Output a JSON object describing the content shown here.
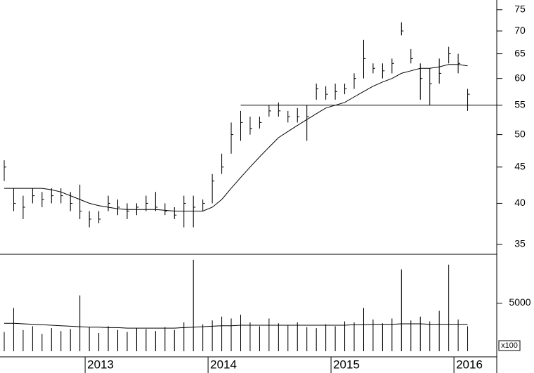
{
  "chart_data": {
    "type": "ohlc",
    "categories": [
      null,
      null,
      null,
      null,
      null,
      null,
      null,
      null,
      null,
      "2013",
      null,
      null,
      null,
      null,
      null,
      null,
      null,
      null,
      null,
      null,
      null,
      null,
      "2014",
      null,
      null,
      null,
      null,
      null,
      null,
      null,
      null,
      null,
      null,
      null,
      null,
      "2015",
      null,
      null,
      null,
      null,
      null,
      null,
      null,
      null,
      null,
      null,
      null,
      null,
      "2016",
      null
    ],
    "log_scale": true,
    "ylim": [
      33.9,
      77.4
    ],
    "yticks": [
      35,
      40,
      45,
      50,
      55,
      60,
      65,
      70,
      75
    ],
    "high": [
      46,
      42,
      41,
      42,
      41.5,
      42,
      42,
      41.5,
      42.5,
      39,
      39,
      41,
      40.5,
      40,
      40,
      41,
      41.5,
      40,
      39.5,
      41,
      41,
      40.5,
      44,
      47,
      52,
      54,
      53,
      53,
      55,
      55.5,
      54,
      54.5,
      55,
      59,
      58.5,
      59,
      59,
      61,
      68,
      63,
      63,
      64,
      72,
      66,
      63,
      62,
      64,
      66.5,
      65,
      58
    ],
    "low": [
      43,
      39,
      38,
      40,
      39.5,
      40,
      40,
      39,
      38,
      37,
      37.5,
      39,
      38.5,
      38,
      38.5,
      39,
      39,
      38.5,
      38,
      37,
      37,
      39,
      40,
      44,
      47,
      49,
      50,
      51,
      53,
      53,
      52,
      52,
      49,
      56,
      56,
      56,
      57,
      58,
      60,
      61,
      60,
      61,
      69,
      63,
      56,
      55,
      59,
      63,
      61,
      54
    ],
    "close": [
      45,
      40,
      39.5,
      41,
      40.5,
      41,
      41,
      40,
      39,
      38,
      38,
      40,
      39.5,
      39,
      39.5,
      40,
      39.5,
      39,
      38.5,
      40,
      39.5,
      40,
      43,
      45,
      50,
      52,
      51,
      52,
      54,
      54,
      53,
      53,
      53,
      58,
      57,
      57.5,
      58,
      60,
      64,
      62,
      61.5,
      63,
      70,
      64,
      60,
      59,
      61,
      65,
      63,
      57
    ],
    "ma": [
      42,
      42,
      42,
      42,
      42,
      41.8,
      41.5,
      41,
      40.5,
      40,
      39.7,
      39.5,
      39.3,
      39.2,
      39.2,
      39.2,
      39.2,
      39.1,
      39,
      39,
      39,
      39,
      39.5,
      40.5,
      42,
      43.5,
      45,
      46.5,
      48,
      49.5,
      50.5,
      51.5,
      52.5,
      53.5,
      54.5,
      55,
      55.5,
      56.5,
      57.5,
      58.5,
      59.3,
      60,
      61,
      61.5,
      62,
      62,
      62.3,
      62.8,
      62.8,
      62.5
    ],
    "level": 55,
    "level_start": 25,
    "volume": [
      2000,
      4500,
      2200,
      2600,
      1800,
      2400,
      2100,
      2300,
      5800,
      2500,
      1900,
      2600,
      2200,
      2000,
      2400,
      2300,
      2100,
      2500,
      2200,
      3000,
      9500,
      2800,
      3200,
      3600,
      3400,
      3800,
      3000,
      2600,
      3400,
      2900,
      2700,
      3000,
      2500,
      2400,
      2800,
      2600,
      3100,
      3000,
      4500,
      3300,
      2900,
      3400,
      8500,
      3200,
      3600,
      3100,
      4200,
      9000,
      3300,
      2600
    ],
    "volume_ma": [
      2900,
      2900,
      2850,
      2800,
      2750,
      2700,
      2650,
      2600,
      2550,
      2500,
      2500,
      2450,
      2450,
      2400,
      2400,
      2400,
      2400,
      2400,
      2400,
      2450,
      2500,
      2550,
      2600,
      2650,
      2650,
      2700,
      2700,
      2700,
      2700,
      2700,
      2700,
      2700,
      2700,
      2700,
      2700,
      2700,
      2700,
      2750,
      2750,
      2800,
      2800,
      2800,
      2850,
      2850,
      2850,
      2800,
      2800,
      2800,
      2800,
      2800
    ],
    "vlim": [
      0,
      10000
    ],
    "vticks": [
      5000
    ],
    "volume_unit": "x100"
  }
}
